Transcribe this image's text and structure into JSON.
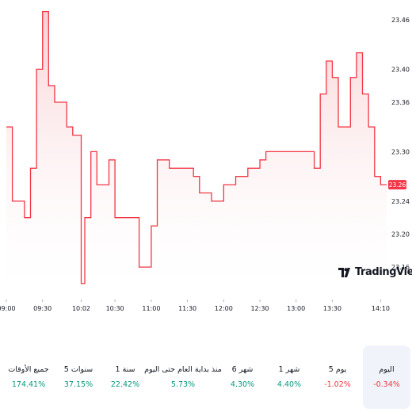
{
  "chart_data": {
    "type": "area",
    "x": [
      "09:00",
      "09:05",
      "09:10",
      "09:15",
      "09:20",
      "09:25",
      "09:30",
      "09:35",
      "09:40",
      "09:45",
      "09:50",
      "09:55",
      "10:00",
      "10:02",
      "10:05",
      "10:10",
      "10:15",
      "10:20",
      "10:25",
      "10:30",
      "10:35",
      "10:40",
      "10:45",
      "10:50",
      "10:55",
      "11:00",
      "11:05",
      "11:10",
      "11:15",
      "11:20",
      "11:25",
      "11:30",
      "11:35",
      "11:40",
      "11:45",
      "11:50",
      "11:55",
      "12:00",
      "12:05",
      "12:10",
      "12:15",
      "12:20",
      "12:25",
      "12:30",
      "12:35",
      "12:40",
      "12:45",
      "12:50",
      "12:55",
      "13:00",
      "13:05",
      "13:10",
      "13:15",
      "13:20",
      "13:25",
      "13:30",
      "13:35",
      "13:40",
      "13:45",
      "13:50",
      "13:55",
      "14:00",
      "14:05",
      "14:10",
      "14:15"
    ],
    "y": [
      23.33,
      23.24,
      23.24,
      23.22,
      23.28,
      23.4,
      23.47,
      23.38,
      23.36,
      23.36,
      23.33,
      23.32,
      23.32,
      23.14,
      23.22,
      23.3,
      23.26,
      23.26,
      23.29,
      23.22,
      23.22,
      23.22,
      23.22,
      23.16,
      23.16,
      23.21,
      23.29,
      23.29,
      23.28,
      23.28,
      23.28,
      23.28,
      23.27,
      23.25,
      23.25,
      23.24,
      23.24,
      23.26,
      23.26,
      23.27,
      23.27,
      23.28,
      23.28,
      23.29,
      23.3,
      23.3,
      23.3,
      23.3,
      23.3,
      23.3,
      23.3,
      23.3,
      23.28,
      23.37,
      23.41,
      23.39,
      23.33,
      23.33,
      23.39,
      23.42,
      23.37,
      23.33,
      23.27,
      23.26,
      23.26
    ],
    "xlabel": "",
    "ylabel": "",
    "title": "",
    "ylim": [
      23.138,
      23.484
    ],
    "yticks": [
      "23.46",
      "23.40",
      "23.36",
      "23.30",
      "23.24",
      "23.20",
      "23.16"
    ],
    "xticks": [
      "09:00",
      "09:30",
      "10:02",
      "10:30",
      "11:00",
      "11:30",
      "12:00",
      "12:30",
      "13:00",
      "13:30",
      "14:10"
    ],
    "last_price": "23.26",
    "line_color": "#f23645",
    "fill_top_color": "#f7c9cd",
    "grid": false
  },
  "watermark": {
    "text": "TradingView",
    "icon": "tradingview-logo-icon"
  },
  "performance": [
    {
      "label": "اليوم",
      "value": "-0.34%",
      "color": "#f23645",
      "active": true
    },
    {
      "label": "5 يوم",
      "value": "-1.02%",
      "color": "#f23645",
      "active": false
    },
    {
      "label": "1 شهر",
      "value": "4.40%",
      "color": "#089981",
      "active": false
    },
    {
      "label": "6 شهر",
      "value": "4.30%",
      "color": "#089981",
      "active": false
    },
    {
      "label": "منذ بداية العام حتى اليوم",
      "value": "5.73%",
      "color": "#089981",
      "active": false
    },
    {
      "label": "1 سنة",
      "value": "22.42%",
      "color": "#089981",
      "active": false
    },
    {
      "label": "5 سنوات",
      "value": "37.15%",
      "color": "#089981",
      "active": false
    },
    {
      "label": "جميع الأوقات",
      "value": "174.41%",
      "color": "#089981",
      "active": false
    }
  ]
}
